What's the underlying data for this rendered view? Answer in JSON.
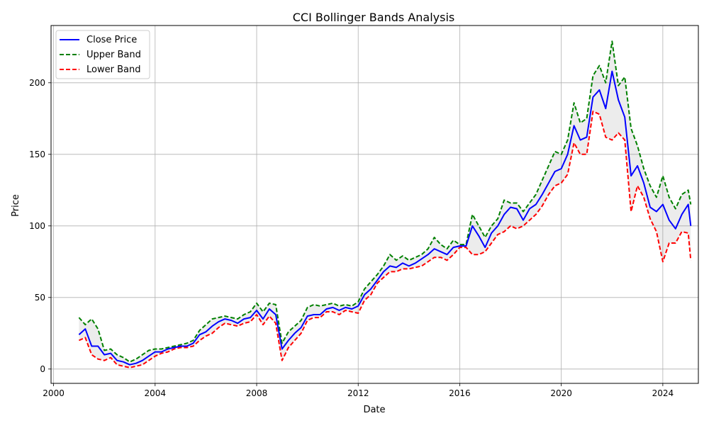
{
  "chart_data": {
    "type": "line",
    "title": "CCI Bollinger Bands Analysis",
    "xlabel": "Date",
    "ylabel": "Price",
    "xlim": [
      1999.9,
      2025.4
    ],
    "ylim": [
      -10,
      240
    ],
    "x_ticks": [
      2000,
      2004,
      2008,
      2012,
      2016,
      2020,
      2024
    ],
    "x_tick_labels": [
      "2000",
      "2004",
      "2008",
      "2012",
      "2016",
      "2020",
      "2024"
    ],
    "y_ticks": [
      0,
      50,
      100,
      150,
      200
    ],
    "y_tick_labels": [
      "0",
      "50",
      "100",
      "150",
      "200"
    ],
    "grid": true,
    "legend_position": "upper-left",
    "x": [
      2001.0,
      2001.25,
      2001.5,
      2001.75,
      2002.0,
      2002.25,
      2002.5,
      2002.75,
      2003.0,
      2003.25,
      2003.5,
      2003.75,
      2004.0,
      2004.25,
      2004.5,
      2004.75,
      2005.0,
      2005.25,
      2005.5,
      2005.75,
      2006.0,
      2006.25,
      2006.5,
      2006.75,
      2007.0,
      2007.25,
      2007.5,
      2007.75,
      2008.0,
      2008.25,
      2008.5,
      2008.75,
      2009.0,
      2009.25,
      2009.5,
      2009.75,
      2010.0,
      2010.25,
      2010.5,
      2010.75,
      2011.0,
      2011.25,
      2011.5,
      2011.75,
      2012.0,
      2012.25,
      2012.5,
      2012.75,
      2013.0,
      2013.25,
      2013.5,
      2013.75,
      2014.0,
      2014.25,
      2014.5,
      2014.75,
      2015.0,
      2015.25,
      2015.5,
      2015.75,
      2016.0,
      2016.25,
      2016.5,
      2016.75,
      2017.0,
      2017.25,
      2017.5,
      2017.75,
      2018.0,
      2018.25,
      2018.5,
      2018.75,
      2019.0,
      2019.25,
      2019.5,
      2019.75,
      2020.0,
      2020.25,
      2020.5,
      2020.75,
      2021.0,
      2021.25,
      2021.5,
      2021.75,
      2022.0,
      2022.25,
      2022.5,
      2022.75,
      2023.0,
      2023.25,
      2023.5,
      2023.75,
      2024.0,
      2024.25,
      2024.5,
      2024.75,
      2025.0,
      2025.1
    ],
    "series": [
      {
        "name": "Close Price",
        "color": "#0000ff",
        "dash": "solid",
        "values": [
          24,
          28,
          16,
          16,
          10,
          11,
          6,
          5,
          3,
          4,
          6,
          9,
          12,
          12,
          14,
          15,
          16,
          16,
          18,
          24,
          26,
          30,
          33,
          35,
          34,
          32,
          35,
          36,
          41,
          35,
          42,
          38,
          14,
          20,
          25,
          29,
          37,
          38,
          38,
          42,
          43,
          41,
          43,
          42,
          44,
          52,
          56,
          62,
          68,
          72,
          71,
          74,
          72,
          74,
          77,
          80,
          84,
          82,
          80,
          85,
          86,
          86,
          100,
          93,
          85,
          95,
          100,
          108,
          113,
          112,
          104,
          112,
          115,
          122,
          130,
          138,
          140,
          150,
          170,
          160,
          162,
          190,
          195,
          182,
          208,
          188,
          176,
          135,
          142,
          130,
          113,
          110,
          115,
          104,
          98,
          108,
          115,
          100
        ]
      },
      {
        "name": "Upper Band",
        "color": "#008000",
        "dash": "dashed",
        "values": [
          36,
          31,
          35,
          28,
          13,
          14,
          10,
          8,
          5,
          7,
          10,
          13,
          14,
          14,
          15,
          16,
          17,
          18,
          20,
          27,
          31,
          35,
          36,
          37,
          36,
          35,
          38,
          40,
          46,
          40,
          46,
          45,
          18,
          26,
          30,
          34,
          43,
          45,
          44,
          45,
          46,
          44,
          45,
          44,
          47,
          56,
          61,
          66,
          72,
          80,
          76,
          79,
          76,
          78,
          80,
          84,
          92,
          87,
          84,
          90,
          87,
          87,
          108,
          100,
          92,
          100,
          105,
          118,
          116,
          116,
          110,
          116,
          122,
          132,
          142,
          152,
          150,
          160,
          186,
          172,
          175,
          205,
          212,
          200,
          229,
          198,
          204,
          168,
          156,
          140,
          128,
          120,
          135,
          120,
          112,
          122,
          125,
          115
        ]
      },
      {
        "name": "Lower Band",
        "color": "#ff0000",
        "dash": "dashed",
        "values": [
          20,
          22,
          10,
          7,
          6,
          8,
          3,
          2,
          1,
          2,
          3,
          6,
          9,
          11,
          12,
          14,
          15,
          15,
          16,
          20,
          23,
          25,
          29,
          32,
          31,
          30,
          32,
          33,
          38,
          31,
          37,
          32,
          6,
          15,
          20,
          25,
          34,
          36,
          36,
          40,
          40,
          38,
          41,
          40,
          39,
          48,
          52,
          60,
          64,
          68,
          68,
          70,
          70,
          71,
          72,
          75,
          78,
          78,
          76,
          80,
          85,
          85,
          80,
          80,
          82,
          88,
          94,
          96,
          100,
          98,
          100,
          104,
          108,
          114,
          122,
          128,
          130,
          136,
          158,
          150,
          150,
          180,
          178,
          162,
          160,
          165,
          160,
          110,
          128,
          120,
          105,
          96,
          75,
          88,
          88,
          96,
          95,
          76
        ]
      }
    ]
  }
}
